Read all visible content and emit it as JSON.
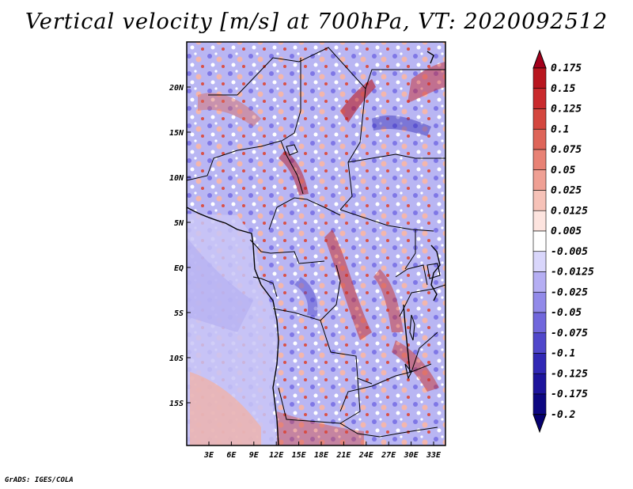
{
  "title": "Vertical velocity [m/s] at 700hPa, VT: 2020092512",
  "footer": "GrADS: IGES/COLA",
  "map": {
    "lat_labels": [
      "20N",
      "15N",
      "10N",
      "5N",
      "EQ",
      "5S",
      "10S",
      "15S"
    ],
    "lon_labels": [
      "3E",
      "6E",
      "9E",
      "12E",
      "15E",
      "18E",
      "21E",
      "24E",
      "27E",
      "30E",
      "33E"
    ]
  },
  "colorbar": {
    "labels": [
      "0.175",
      "0.15",
      "0.125",
      "0.1",
      "0.075",
      "0.05",
      "0.025",
      "0.0125",
      "0.005",
      "-0.005",
      "-0.0125",
      "-0.025",
      "-0.05",
      "-0.075",
      "-0.1",
      "-0.125",
      "-0.175",
      "-0.2"
    ],
    "colors": [
      "#a3001c",
      "#b8161f",
      "#c92a2d",
      "#d4473f",
      "#de6559",
      "#e88275",
      "#efa094",
      "#f6c2b8",
      "#fde4df",
      "#ffffff",
      "#d9d6fb",
      "#b5aef3",
      "#928ae9",
      "#7167dc",
      "#5047cb",
      "#3128b5",
      "#1d149c",
      "#0d0781",
      "#060070"
    ]
  }
}
